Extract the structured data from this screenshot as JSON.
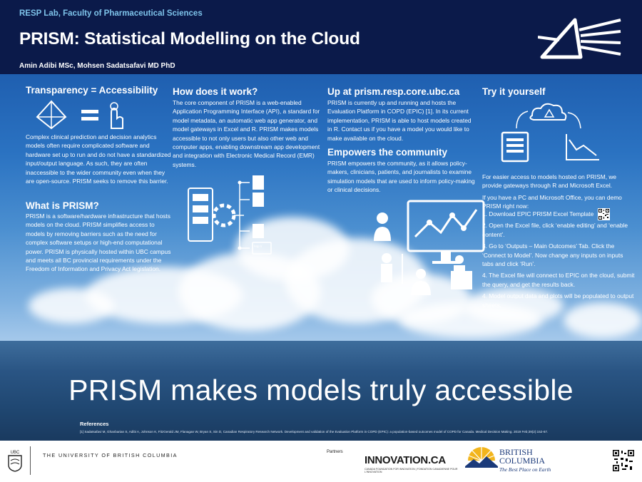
{
  "header": {
    "lab": "RESP Lab, Faculty of Pharmaceutical Sciences",
    "title": "PRISM: Statistical Modelling on the Cloud",
    "authors": "Amin Adibi MSc, Mohsen Sadatsafavi MD PhD"
  },
  "col1": {
    "heading1": "Transparency = Accessibility",
    "para1": "Complex clinical prediction and decision analytics models often require complicated software and hardware set up to run and do not have a standardized input/output language. As such, they are often inaccessible to the wider community even when they are open-source. PRISM seeks to remove this barrier.",
    "heading2": "What is PRISM?",
    "para2": "PRISM is a software/hardware infrastructure that hosts models on the cloud. PRISM simplifies access to models by removing barriers such as the need for complex software setups or high-end computational power. PRISM is physically hosted within UBC campus and meets all BC provincial requirements under the Freedom of Information and Privacy Act legislation."
  },
  "col2": {
    "heading": "How does it work?",
    "para": "The core component of PRISM is a web-enabled Application Programming Interface (API), a standard for model metadata, an automatic web app generator, and model gateways in Excel and R. PRISM makes models accessible to not only users but also other web and computer apps, enabling downstream app development and integration with Electronic Medical Record (EMR) systems.",
    "icon_label": "http://"
  },
  "col3": {
    "heading1": "Up at prism.resp.core.ubc.ca",
    "para1": "PRISM is currently up and running and hosts the Evaluation Platform in COPD (EPIC) [1]. In its current implementation, PRISM is able to host models created in R. Contact us if you have a model you would like to make available on the cloud.",
    "heading2": "Empowers the community",
    "para2": "PRISM empowers the community, as it allows policy-makers, clinicians, patients, and journalists to examine simulation models that are used to inform policy-making or clinical decisions."
  },
  "col4": {
    "heading": "Try it yourself",
    "para1": "For easier access to models hosted on PRISM, we provide gateways through R and Microsoft Excel.",
    "para2": "If you have a PC and Microsoft Office, you can demo PRISM right now:",
    "steps": [
      "1. Download EPIC PRISM Excel Template",
      "2. Open the Excel file, click ‘enable editing’ and ‘enable content’.",
      "3. Go to ‘Outputs – Main Outcomes’ Tab. Click the ‘Connect to Model’. Now change any inputs on inputs tabs and click ‘Run’.",
      "4. The Excel file will connect to EPIC on the cloud, submit the query, and get the results back.",
      "4. Model output data and plots will be populated to output sheets."
    ]
  },
  "tagline": "PRISM makes models truly accessible",
  "references": {
    "heading": "References",
    "text": "[1] Sadatsafavi M, Ghanbarian S, Adibi A, Johnson K, FitzGerald JM, Flanagan W, Bryan S, Sin D, Canadian Respiratory Research Network. Development and validation of the Evaluation Platform in COPD (EPIC): a population-based outcomes model of COPD for Canada. Medical Decision Making. 2019 Feb;39(2):152-67."
  },
  "footer": {
    "ubc_name": "THE UNIVERSITY OF BRITISH COLUMBIA",
    "ubc_crest_text": "UBC",
    "partners_label": "Partners",
    "innovation_name": "INNOVATION.CA",
    "innovation_sub_en": "CANADA FOUNDATION FOR INNOVATION",
    "innovation_sub_fr": "FONDATION CANADIENNE POUR L’INNOVATION",
    "bc_name_line1": "BRITISH",
    "bc_name_line2": "COLUMBIA",
    "bc_tagline": "The Best Place on Earth"
  },
  "colors": {
    "header_bg": "#0b1a4a",
    "lab_text": "#7ec3ea",
    "bc_blue": "#1b3a7a",
    "bc_gold": "#f2b51c"
  }
}
